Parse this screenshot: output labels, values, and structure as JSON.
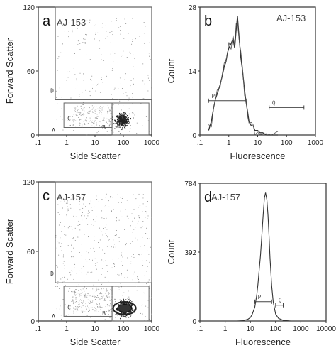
{
  "chart_data": [
    {
      "id": "a",
      "type": "scatter",
      "panel_label": "a",
      "sample_label": "AJ-153",
      "xlabel": "Side Scatter",
      "ylabel": "Forward Scatter",
      "xscale": "log",
      "xlim": [
        0.1,
        1000
      ],
      "ylim": [
        0,
        120
      ],
      "xticks": [
        ".1",
        "1",
        "10",
        "100",
        "1000"
      ],
      "yticks": [
        "0",
        "60",
        "120"
      ],
      "gates": [
        {
          "name": "D",
          "x": [
            0.4,
            1000
          ],
          "y": [
            33,
            120
          ]
        },
        {
          "name": "C",
          "x": [
            0.8,
            40
          ],
          "y": [
            7,
            30
          ]
        },
        {
          "name": "B",
          "x": [
            40,
            800
          ],
          "y": [
            0,
            30
          ]
        },
        {
          "name": "A",
          "x": [
            0.4,
            1000
          ],
          "y": [
            0,
            120
          ]
        }
      ],
      "population": {
        "center": [
          90,
          14
        ],
        "spread": "dense cluster"
      }
    },
    {
      "id": "b",
      "type": "line",
      "panel_label": "b",
      "sample_label": "AJ-153",
      "xlabel": "Fluorescence",
      "ylabel": "Count",
      "xscale": "log",
      "xlim": [
        0.1,
        1000
      ],
      "ylim": [
        0,
        28
      ],
      "xticks": [
        ".1",
        "1",
        "10",
        "100",
        "1000"
      ],
      "yticks": [
        "0",
        "14",
        "28"
      ],
      "markers": [
        {
          "name": "P",
          "x": [
            0.2,
            4
          ],
          "y": 7.5
        },
        {
          "name": "Q",
          "x": [
            25,
            400
          ],
          "y": 6
        }
      ],
      "series": [
        {
          "x": [
            0.2,
            0.25,
            0.3,
            0.35,
            0.4,
            0.5,
            0.6,
            0.7,
            0.8,
            0.9,
            1.0,
            1.2,
            1.4,
            1.6,
            1.8,
            2.0,
            2.3,
            2.6,
            3.0,
            3.5,
            4.0,
            4.5,
            5.0,
            6.0,
            7.0,
            8.0,
            10,
            12,
            15,
            20,
            30,
            50
          ],
          "y": [
            1,
            3,
            6,
            8,
            9,
            11,
            13,
            15,
            16,
            18,
            19,
            20,
            21,
            19,
            23,
            26,
            21,
            17,
            14,
            10,
            7,
            5,
            3,
            2,
            2,
            1,
            1,
            0.5,
            0.5,
            0,
            0,
            0
          ]
        }
      ]
    },
    {
      "id": "c",
      "type": "scatter",
      "panel_label": "c",
      "sample_label": "AJ-157",
      "xlabel": "Side Scatter",
      "ylabel": "Forward Scatter",
      "xscale": "log",
      "xlim": [
        0.1,
        1000
      ],
      "ylim": [
        0,
        120
      ],
      "xticks": [
        ".1",
        "1",
        "10",
        "100",
        "1000"
      ],
      "yticks": [
        "0",
        "60",
        "120"
      ],
      "gates": [
        {
          "name": "D",
          "x": [
            0.4,
            1000
          ],
          "y": [
            33,
            120
          ]
        },
        {
          "name": "C",
          "x": [
            0.8,
            40
          ],
          "y": [
            4,
            30
          ]
        },
        {
          "name": "B",
          "x": [
            40,
            800
          ],
          "y": [
            0,
            30
          ]
        },
        {
          "name": "A",
          "x": [
            0.4,
            1000
          ],
          "y": [
            0,
            120
          ]
        }
      ],
      "population": {
        "center": [
          110,
          11
        ],
        "spread": "dense oval cluster"
      }
    },
    {
      "id": "d",
      "type": "line",
      "panel_label": "d",
      "sample_label": "AJ-157",
      "xlabel": "Fluorescence",
      "ylabel": "Count",
      "xscale": "log",
      "xlim": [
        0.1,
        10000
      ],
      "ylim": [
        0,
        784
      ],
      "xticks": [
        ".1",
        "1",
        "10",
        "100",
        "1000",
        "10000"
      ],
      "yticks": [
        "0",
        "392",
        "784"
      ],
      "markers": [
        {
          "name": "P",
          "x": [
            15,
            70
          ],
          "y": 110
        },
        {
          "name": "Q",
          "x": [
            100,
            200
          ],
          "y": 90
        }
      ],
      "series": [
        {
          "x": [
            1,
            3,
            5,
            8,
            10,
            12,
            15,
            18,
            20,
            22,
            25,
            28,
            30,
            33,
            36,
            40,
            45,
            50,
            55,
            60,
            70,
            80,
            100,
            130,
            200,
            400,
            1000
          ],
          "y": [
            0,
            0,
            2,
            10,
            20,
            40,
            80,
            150,
            210,
            280,
            370,
            470,
            540,
            630,
            700,
            730,
            690,
            600,
            480,
            360,
            200,
            110,
            40,
            15,
            4,
            0,
            0
          ]
        }
      ]
    }
  ]
}
